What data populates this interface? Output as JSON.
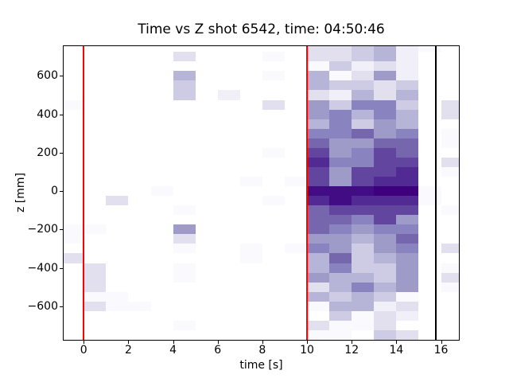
{
  "title": "Time vs Z shot 6542, time: 04:50:46",
  "axes": {
    "xlabel": "time [s]",
    "ylabel": "z [mm]",
    "xlim": [
      -0.9,
      16.8
    ],
    "ylim": [
      -775,
      755
    ],
    "x_ticks": [
      {
        "v": 0,
        "label": "0"
      },
      {
        "v": 2,
        "label": "2"
      },
      {
        "v": 4,
        "label": "4"
      },
      {
        "v": 6,
        "label": "6"
      },
      {
        "v": 8,
        "label": "8"
      },
      {
        "v": 10,
        "label": "10"
      },
      {
        "v": 12,
        "label": "12"
      },
      {
        "v": 14,
        "label": "14"
      },
      {
        "v": 16,
        "label": "16"
      }
    ],
    "y_ticks": [
      {
        "v": 600,
        "label": "600"
      },
      {
        "v": 400,
        "label": "400"
      },
      {
        "v": 200,
        "label": "200"
      },
      {
        "v": 0,
        "label": "0"
      },
      {
        "v": -200,
        "label": "−200"
      },
      {
        "v": -400,
        "label": "−400"
      },
      {
        "v": -600,
        "label": "−600"
      }
    ]
  },
  "lines": [
    {
      "name": "red-marker-start",
      "x": 0,
      "color": "#ff0000"
    },
    {
      "name": "red-marker-end",
      "x": 10,
      "color": "#ff0000"
    },
    {
      "name": "black-marker",
      "x": 15.75,
      "color": "#000000"
    }
  ],
  "chart_data": {
    "type": "heatmap",
    "colormap": "Purples",
    "title": "Time vs Z shot 6542, time: 04:50:46",
    "xlabel": "time [s]",
    "ylabel": "z [mm]",
    "time_bin_seconds": 1,
    "z_bin_mm": 50,
    "legend": "none",
    "grid": false,
    "palette": [
      "#faf9fd",
      "#f1eff7",
      "#e2dfef",
      "#cecce4",
      "#b6b5d8",
      "#9f9bc9",
      "#8983bf",
      "#7566ae",
      "#61459e",
      "#512b93",
      "#420d84",
      "#3f007d"
    ],
    "cells_format": "[time_bin_start_s, z_bin_center_mm, palette_level_1_to_12]",
    "cells": [
      [
        -1,
        450,
        1
      ],
      [
        -1,
        -200,
        1
      ],
      [
        -1,
        -250,
        1
      ],
      [
        -1,
        -350,
        3
      ],
      [
        0,
        -200,
        1
      ],
      [
        0,
        -400,
        3
      ],
      [
        0,
        -450,
        3
      ],
      [
        0,
        -500,
        3
      ],
      [
        0,
        -550,
        1
      ],
      [
        0,
        -600,
        3
      ],
      [
        1,
        -50,
        3
      ],
      [
        1,
        -550,
        1
      ],
      [
        1,
        -600,
        1
      ],
      [
        2,
        -600,
        1
      ],
      [
        3,
        0,
        1
      ],
      [
        4,
        700,
        3
      ],
      [
        4,
        600,
        5
      ],
      [
        4,
        550,
        4
      ],
      [
        4,
        500,
        4
      ],
      [
        4,
        -100,
        1
      ],
      [
        4,
        -200,
        6
      ],
      [
        4,
        -250,
        3
      ],
      [
        4,
        -300,
        1
      ],
      [
        4,
        -400,
        1
      ],
      [
        4,
        -450,
        1
      ],
      [
        4,
        -700,
        1
      ],
      [
        6,
        500,
        2
      ],
      [
        7,
        50,
        1
      ],
      [
        7,
        -300,
        1
      ],
      [
        7,
        -350,
        1
      ],
      [
        8,
        700,
        1
      ],
      [
        8,
        600,
        1
      ],
      [
        8,
        450,
        3
      ],
      [
        8,
        200,
        1
      ],
      [
        8,
        -50,
        1
      ],
      [
        9,
        50,
        1
      ],
      [
        9,
        -300,
        1
      ],
      [
        10,
        750,
        3
      ],
      [
        10,
        700,
        3
      ],
      [
        10,
        650,
        1
      ],
      [
        10,
        600,
        5
      ],
      [
        10,
        550,
        5
      ],
      [
        10,
        500,
        3
      ],
      [
        10,
        450,
        6
      ],
      [
        10,
        400,
        6
      ],
      [
        10,
        350,
        5
      ],
      [
        10,
        300,
        7
      ],
      [
        10,
        250,
        8
      ],
      [
        10,
        200,
        9
      ],
      [
        10,
        150,
        10
      ],
      [
        10,
        100,
        9
      ],
      [
        10,
        50,
        9
      ],
      [
        10,
        0,
        11
      ],
      [
        10,
        -50,
        10
      ],
      [
        10,
        -100,
        8
      ],
      [
        10,
        -150,
        8
      ],
      [
        10,
        -200,
        8
      ],
      [
        10,
        -250,
        6
      ],
      [
        10,
        -300,
        7
      ],
      [
        10,
        -350,
        5
      ],
      [
        10,
        -400,
        5
      ],
      [
        10,
        -450,
        6
      ],
      [
        10,
        -500,
        3
      ],
      [
        10,
        -550,
        5
      ],
      [
        10,
        -600,
        1
      ],
      [
        10,
        -700,
        3
      ],
      [
        10,
        -750,
        1
      ],
      [
        11,
        750,
        3
      ],
      [
        11,
        700,
        3
      ],
      [
        11,
        650,
        4
      ],
      [
        11,
        600,
        1
      ],
      [
        11,
        550,
        4
      ],
      [
        11,
        500,
        2
      ],
      [
        11,
        450,
        4
      ],
      [
        11,
        400,
        7
      ],
      [
        11,
        350,
        7
      ],
      [
        11,
        300,
        7
      ],
      [
        11,
        250,
        6
      ],
      [
        11,
        200,
        6
      ],
      [
        11,
        150,
        7
      ],
      [
        11,
        100,
        6
      ],
      [
        11,
        50,
        6
      ],
      [
        11,
        0,
        11
      ],
      [
        11,
        -50,
        11
      ],
      [
        11,
        -100,
        9
      ],
      [
        11,
        -150,
        8
      ],
      [
        11,
        -200,
        7
      ],
      [
        11,
        -250,
        6
      ],
      [
        11,
        -300,
        6
      ],
      [
        11,
        -350,
        8
      ],
      [
        11,
        -400,
        7
      ],
      [
        11,
        -450,
        5
      ],
      [
        11,
        -500,
        5
      ],
      [
        11,
        -550,
        4
      ],
      [
        11,
        -600,
        5
      ],
      [
        11,
        -650,
        4
      ],
      [
        11,
        -700,
        1
      ],
      [
        11,
        -750,
        1
      ],
      [
        12,
        750,
        4
      ],
      [
        12,
        700,
        4
      ],
      [
        12,
        650,
        2
      ],
      [
        12,
        600,
        3
      ],
      [
        12,
        550,
        4
      ],
      [
        12,
        500,
        5
      ],
      [
        12,
        450,
        7
      ],
      [
        12,
        400,
        5
      ],
      [
        12,
        350,
        4
      ],
      [
        12,
        300,
        8
      ],
      [
        12,
        250,
        6
      ],
      [
        12,
        200,
        7
      ],
      [
        12,
        150,
        7
      ],
      [
        12,
        100,
        9
      ],
      [
        12,
        50,
        9
      ],
      [
        12,
        0,
        11
      ],
      [
        12,
        -50,
        10
      ],
      [
        12,
        -100,
        9
      ],
      [
        12,
        -150,
        7
      ],
      [
        12,
        -200,
        6
      ],
      [
        12,
        -250,
        5
      ],
      [
        12,
        -300,
        4
      ],
      [
        12,
        -350,
        4
      ],
      [
        12,
        -400,
        4
      ],
      [
        12,
        -450,
        5
      ],
      [
        12,
        -500,
        7
      ],
      [
        12,
        -550,
        5
      ],
      [
        12,
        -600,
        5
      ],
      [
        12,
        -650,
        1
      ],
      [
        12,
        -700,
        1
      ],
      [
        13,
        750,
        5
      ],
      [
        13,
        700,
        5
      ],
      [
        13,
        650,
        3
      ],
      [
        13,
        600,
        6
      ],
      [
        13,
        550,
        3
      ],
      [
        13,
        500,
        3
      ],
      [
        13,
        450,
        7
      ],
      [
        13,
        400,
        7
      ],
      [
        13,
        350,
        6
      ],
      [
        13,
        300,
        6
      ],
      [
        13,
        250,
        8
      ],
      [
        13,
        200,
        9
      ],
      [
        13,
        150,
        9
      ],
      [
        13,
        100,
        9
      ],
      [
        13,
        50,
        10
      ],
      [
        13,
        0,
        12
      ],
      [
        13,
        -50,
        10
      ],
      [
        13,
        -100,
        9
      ],
      [
        13,
        -150,
        9
      ],
      [
        13,
        -200,
        7
      ],
      [
        13,
        -250,
        6
      ],
      [
        13,
        -300,
        6
      ],
      [
        13,
        -350,
        5
      ],
      [
        13,
        -400,
        4
      ],
      [
        13,
        -450,
        4
      ],
      [
        13,
        -500,
        5
      ],
      [
        13,
        -550,
        4
      ],
      [
        13,
        -600,
        2
      ],
      [
        13,
        -650,
        3
      ],
      [
        13,
        -700,
        3
      ],
      [
        13,
        -750,
        4
      ],
      [
        14,
        750,
        2
      ],
      [
        14,
        700,
        2
      ],
      [
        14,
        650,
        2
      ],
      [
        14,
        600,
        2
      ],
      [
        14,
        550,
        4
      ],
      [
        14,
        500,
        5
      ],
      [
        14,
        450,
        4
      ],
      [
        14,
        400,
        5
      ],
      [
        14,
        350,
        5
      ],
      [
        14,
        300,
        7
      ],
      [
        14,
        250,
        8
      ],
      [
        14,
        200,
        8
      ],
      [
        14,
        150,
        9
      ],
      [
        14,
        100,
        10
      ],
      [
        14,
        50,
        10
      ],
      [
        14,
        0,
        12
      ],
      [
        14,
        -50,
        10
      ],
      [
        14,
        -100,
        9
      ],
      [
        14,
        -150,
        6
      ],
      [
        14,
        -200,
        7
      ],
      [
        14,
        -250,
        8
      ],
      [
        14,
        -300,
        7
      ],
      [
        14,
        -350,
        6
      ],
      [
        14,
        -400,
        6
      ],
      [
        14,
        -450,
        6
      ],
      [
        14,
        -500,
        6
      ],
      [
        14,
        -550,
        1
      ],
      [
        14,
        -600,
        3
      ],
      [
        14,
        -650,
        2
      ],
      [
        14,
        -750,
        3
      ],
      [
        15,
        750,
        1
      ],
      [
        15,
        0,
        1
      ],
      [
        15,
        -50,
        1
      ],
      [
        16,
        450,
        3
      ],
      [
        16,
        400,
        3
      ],
      [
        16,
        300,
        1
      ],
      [
        16,
        250,
        1
      ],
      [
        16,
        150,
        3
      ],
      [
        16,
        100,
        1
      ],
      [
        16,
        -100,
        1
      ],
      [
        16,
        -300,
        3
      ],
      [
        16,
        -400,
        1
      ],
      [
        16,
        -450,
        3
      ],
      [
        16,
        -500,
        1
      ]
    ]
  }
}
